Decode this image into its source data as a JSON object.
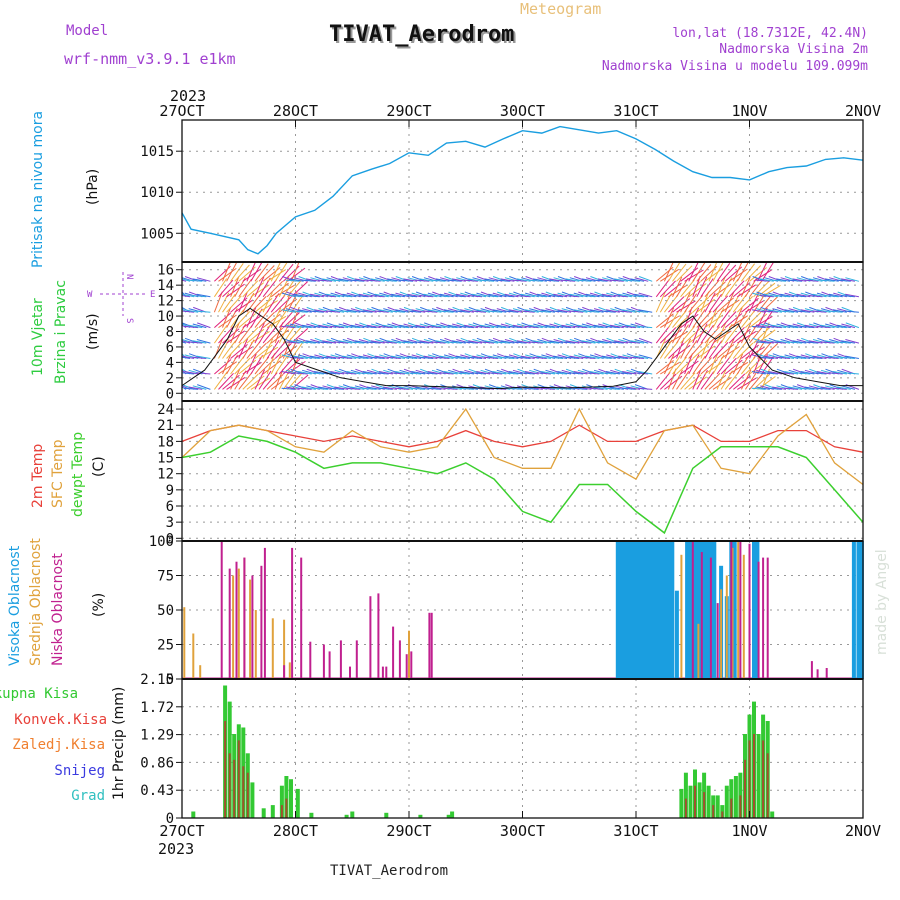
{
  "header": {
    "model_label": "Model",
    "model_name": "wrf-nmm_v3.9.1 e1km",
    "meteogram_label": "Meteogram",
    "station_title": "TIVAT_Aerodrom",
    "lonlat": "lon,lat (18.7312E, 42.4N)",
    "elevation": "Nadmorska Visina 2m",
    "model_elevation": "Nadmorska Visina u modelu 109.099m",
    "footer_station": "TIVAT_Aerodrom",
    "credit": "made by Angel",
    "year": "2023"
  },
  "colors": {
    "pressure": "#1a9ee0",
    "temp2m": "#e8413a",
    "sfc_temp": "#e0a23c",
    "dewpoint": "#3ccf2e",
    "high_cloud": "#1a9ee0",
    "mid_cloud": "#e0a23c",
    "low_cloud": "#c0208f",
    "total_precip": "#33c933",
    "conv_precip": "#e8413a",
    "freezing_precip": "#f08030",
    "snow": "#3b3be0",
    "hail": "#30c0c0",
    "model_purple": "#a040d0",
    "wind_label": "#2ecc40"
  },
  "x_axis": {
    "top_ticks": [
      "27OCT",
      "28OCT",
      "29OCT",
      "30OCT",
      "31OCT",
      "1NOV",
      "2NOV"
    ],
    "bottom_ticks": [
      "27OCT",
      "28OCT",
      "29OCT",
      "30OCT",
      "31OCT",
      "1NOV",
      "2NOV"
    ]
  },
  "chart_data": [
    {
      "type": "line",
      "panel": "pressure",
      "ylabel_main": "Pritisak na nivou mora",
      "ylabel_unit": "(hPa)",
      "y_ticks": [
        "1005",
        "1010",
        "1015"
      ],
      "ylim": [
        1001.5,
        1018.8
      ],
      "grid": true,
      "x_days": [
        0,
        0.08,
        0.25,
        0.5,
        0.58,
        0.67,
        0.75,
        0.83,
        1.0,
        1.17,
        1.33,
        1.5,
        1.67,
        1.83,
        2.0,
        2.17,
        2.33,
        2.5,
        2.67,
        2.83,
        3.0,
        3.17,
        3.33,
        3.5,
        3.67,
        3.83,
        4.0,
        4.17,
        4.33,
        4.5,
        4.67,
        4.83,
        5.0,
        5.17,
        5.33,
        5.5,
        5.67,
        5.83,
        6.0
      ],
      "series": [
        {
          "values": [
            1007.5,
            1005.5,
            1005.0,
            1004.2,
            1003.0,
            1002.5,
            1003.5,
            1005.0,
            1007.0,
            1007.8,
            1009.5,
            1012.0,
            1012.8,
            1013.5,
            1014.8,
            1014.5,
            1016.0,
            1016.2,
            1015.5,
            1016.5,
            1017.5,
            1017.2,
            1018.0,
            1017.6,
            1017.2,
            1017.5,
            1016.5,
            1015.2,
            1013.8,
            1012.5,
            1011.8,
            1011.8,
            1011.5,
            1012.5,
            1013.0,
            1013.2,
            1014.0,
            1014.2,
            1013.9
          ]
        }
      ]
    },
    {
      "type": "line",
      "panel": "wind",
      "ylabel_main": "10m Vjetar",
      "ylabel_main2": "Brzina i Pravac",
      "ylabel_unit": "(m/s)",
      "compass": {
        "n": "N",
        "s": "S",
        "e": "E",
        "w": "W"
      },
      "y_ticks": [
        "0",
        "2",
        "4",
        "6",
        "8",
        "10",
        "12",
        "14",
        "16"
      ],
      "ylim": [
        -1,
        17
      ],
      "grid": true,
      "x_days": [
        0,
        0.1,
        0.2,
        0.3,
        0.4,
        0.5,
        0.6,
        0.7,
        0.8,
        0.9,
        1.0,
        1.2,
        1.4,
        1.6,
        1.8,
        2.0,
        2.4,
        2.8,
        3.0,
        3.4,
        3.8,
        4.0,
        4.1,
        4.2,
        4.3,
        4.4,
        4.5,
        4.6,
        4.7,
        4.8,
        4.9,
        5.0,
        5.2,
        5.4,
        5.6,
        5.8,
        6.0
      ],
      "series": [
        {
          "name": "wind_speed",
          "values": [
            1,
            2,
            3,
            5,
            7,
            10,
            11,
            10,
            9,
            7,
            4,
            3,
            2,
            1.5,
            1,
            1,
            0.8,
            0.6,
            0.8,
            0.7,
            0.9,
            1.5,
            3,
            5,
            7,
            9,
            10,
            8,
            7,
            8,
            9,
            6,
            3,
            2,
            1.5,
            1,
            1
          ]
        }
      ]
    },
    {
      "type": "line",
      "panel": "temperature",
      "ylabel_temp2m": "2m Temp",
      "ylabel_sfc": "SFC Temp",
      "ylabel_dew": "dewpt Temp",
      "ylabel_unit": "(C)",
      "y_ticks": [
        "0",
        "3",
        "6",
        "9",
        "12",
        "15",
        "18",
        "21",
        "24"
      ],
      "ylim": [
        -0.5,
        25.5
      ],
      "grid": true,
      "x_days": [
        0,
        0.25,
        0.5,
        0.75,
        1.0,
        1.25,
        1.5,
        1.75,
        2.0,
        2.25,
        2.5,
        2.75,
        3.0,
        3.25,
        3.5,
        3.75,
        4.0,
        4.25,
        4.5,
        4.75,
        5.0,
        5.25,
        5.5,
        5.75,
        6.0
      ],
      "series": [
        {
          "name": "2m Temp",
          "values": [
            18,
            20,
            21,
            20,
            19,
            18,
            19,
            18,
            17,
            18,
            20,
            18,
            17,
            18,
            21,
            18,
            18,
            20,
            21,
            18,
            18,
            20,
            20,
            17,
            16
          ]
        },
        {
          "name": "SFC Temp",
          "values": [
            15,
            20,
            21,
            20,
            17,
            16,
            20,
            17,
            16,
            17,
            24,
            15,
            13,
            13,
            24,
            14,
            11,
            20,
            21,
            13,
            12,
            19,
            23,
            14,
            10
          ]
        },
        {
          "name": "dewpt Temp",
          "values": [
            15,
            16,
            19,
            18,
            16,
            13,
            14,
            14,
            13,
            12,
            14,
            11,
            5,
            3,
            10,
            10,
            5,
            1,
            13,
            17,
            17,
            17,
            15,
            9,
            3
          ]
        }
      ]
    },
    {
      "type": "bar",
      "panel": "cloud",
      "ylabel_high": "Visoka Oblacnost",
      "ylabel_mid": "Srednja Oblacnost",
      "ylabel_low": "Niska Oblacnost",
      "ylabel_unit": "(%)",
      "y_ticks": [
        "0",
        "25",
        "50",
        "75",
        "100"
      ],
      "ylim": [
        0,
        100
      ],
      "grid": true,
      "series": [
        {
          "name": "Visoka Oblacnost",
          "x": [
            3.84,
            3.87,
            3.9,
            3.93,
            3.96,
            3.99,
            4.02,
            4.05,
            4.08,
            4.11,
            4.14,
            4.17,
            4.2,
            4.23,
            4.26,
            4.29,
            4.32,
            4.36,
            4.45,
            4.48,
            4.51,
            4.54,
            4.57,
            4.6,
            4.63,
            4.66,
            4.69,
            4.75,
            4.8,
            4.84,
            4.87,
            5.04,
            5.07,
            5.92,
            5.96,
            5.99
          ],
          "values": [
            100,
            100,
            100,
            100,
            100,
            100,
            100,
            100,
            100,
            100,
            100,
            100,
            100,
            100,
            100,
            100,
            100,
            64,
            100,
            100,
            100,
            100,
            100,
            100,
            100,
            100,
            100,
            82,
            60,
            100,
            100,
            100,
            100,
            100,
            100,
            100
          ]
        },
        {
          "name": "Srednja Oblacnost",
          "x": [
            0.02,
            0.1,
            0.16,
            0.45,
            0.5,
            0.55,
            0.6,
            0.65,
            0.8,
            0.9,
            0.95,
            2.0,
            4.4,
            4.55,
            4.75,
            4.8,
            4.85,
            4.9,
            4.95,
            5.0
          ],
          "values": [
            52,
            33,
            10,
            75,
            80,
            88,
            72,
            50,
            44,
            43,
            12,
            35,
            90,
            40,
            65,
            75,
            95,
            100,
            90,
            85
          ]
        },
        {
          "name": "Niska Oblacnost",
          "x": [
            0.35,
            0.42,
            0.48,
            0.55,
            0.62,
            0.7,
            0.73,
            0.9,
            0.97,
            1.05,
            1.13,
            1.25,
            1.3,
            1.4,
            1.48,
            1.54,
            1.66,
            1.73,
            1.77,
            1.8,
            1.86,
            1.92,
            1.98,
            2.02,
            2.18,
            2.2,
            4.5,
            4.58,
            4.66,
            4.72,
            4.84,
            4.92,
            5.0,
            5.08,
            5.12,
            5.16,
            5.55,
            5.6,
            5.68
          ],
          "values": [
            100,
            80,
            85,
            88,
            75,
            82,
            95,
            10,
            95,
            88,
            27,
            25,
            20,
            28,
            9,
            28,
            60,
            62,
            9,
            9,
            38,
            28,
            18,
            20,
            48,
            48,
            100,
            92,
            88,
            55,
            100,
            100,
            98,
            85,
            88,
            88,
            13,
            7,
            8
          ]
        }
      ]
    },
    {
      "type": "bar",
      "panel": "precip",
      "legend_total": "Ukupna Kisa",
      "legend_conv": "Konvek.Kisa",
      "legend_freezing": "Zaledj.Kisa",
      "legend_snow": "Snijeg",
      "legend_hail": "Grad",
      "ylabel_unit": "1hr Precip (mm)",
      "y_ticks": [
        "0",
        "0.43",
        "0.86",
        "1.29",
        "1.72",
        "2.15"
      ],
      "ylim": [
        0,
        2.15
      ],
      "grid": true,
      "series": [
        {
          "name": "Ukupna Kisa",
          "x": [
            0.1,
            0.38,
            0.42,
            0.46,
            0.5,
            0.54,
            0.58,
            0.62,
            0.72,
            0.8,
            0.88,
            0.92,
            0.96,
            1.02,
            1.14,
            1.45,
            1.5,
            1.8,
            2.1,
            2.35,
            2.38,
            4.4,
            4.44,
            4.48,
            4.52,
            4.56,
            4.6,
            4.64,
            4.68,
            4.72,
            4.76,
            4.8,
            4.84,
            4.88,
            4.92,
            4.96,
            5.0,
            5.04,
            5.08,
            5.12,
            5.16,
            5.2
          ],
          "values": [
            0.1,
            2.05,
            1.8,
            1.3,
            1.45,
            1.4,
            1.0,
            0.55,
            0.15,
            0.2,
            0.5,
            0.65,
            0.6,
            0.45,
            0.08,
            0.05,
            0.1,
            0.08,
            0.05,
            0.05,
            0.1,
            0.45,
            0.7,
            0.5,
            0.75,
            0.55,
            0.7,
            0.5,
            0.35,
            0.35,
            0.2,
            0.5,
            0.6,
            0.65,
            0.7,
            1.3,
            1.6,
            1.8,
            1.3,
            1.6,
            1.5,
            0.1
          ]
        },
        {
          "name": "Konvek.Kisa",
          "x": [
            0.38,
            0.42,
            0.46,
            0.5,
            0.54,
            0.58,
            0.88,
            0.92,
            4.44,
            4.52,
            4.6,
            4.68,
            4.76,
            4.84,
            4.92,
            4.96,
            5.0,
            5.04,
            5.12,
            5.16
          ],
          "values": [
            1.5,
            1.0,
            0.9,
            1.2,
            0.8,
            0.7,
            0.2,
            0.3,
            0.3,
            0.5,
            0.4,
            0.2,
            0.1,
            0.3,
            0.35,
            0.9,
            1.2,
            1.3,
            1.2,
            1.0
          ]
        }
      ]
    }
  ]
}
